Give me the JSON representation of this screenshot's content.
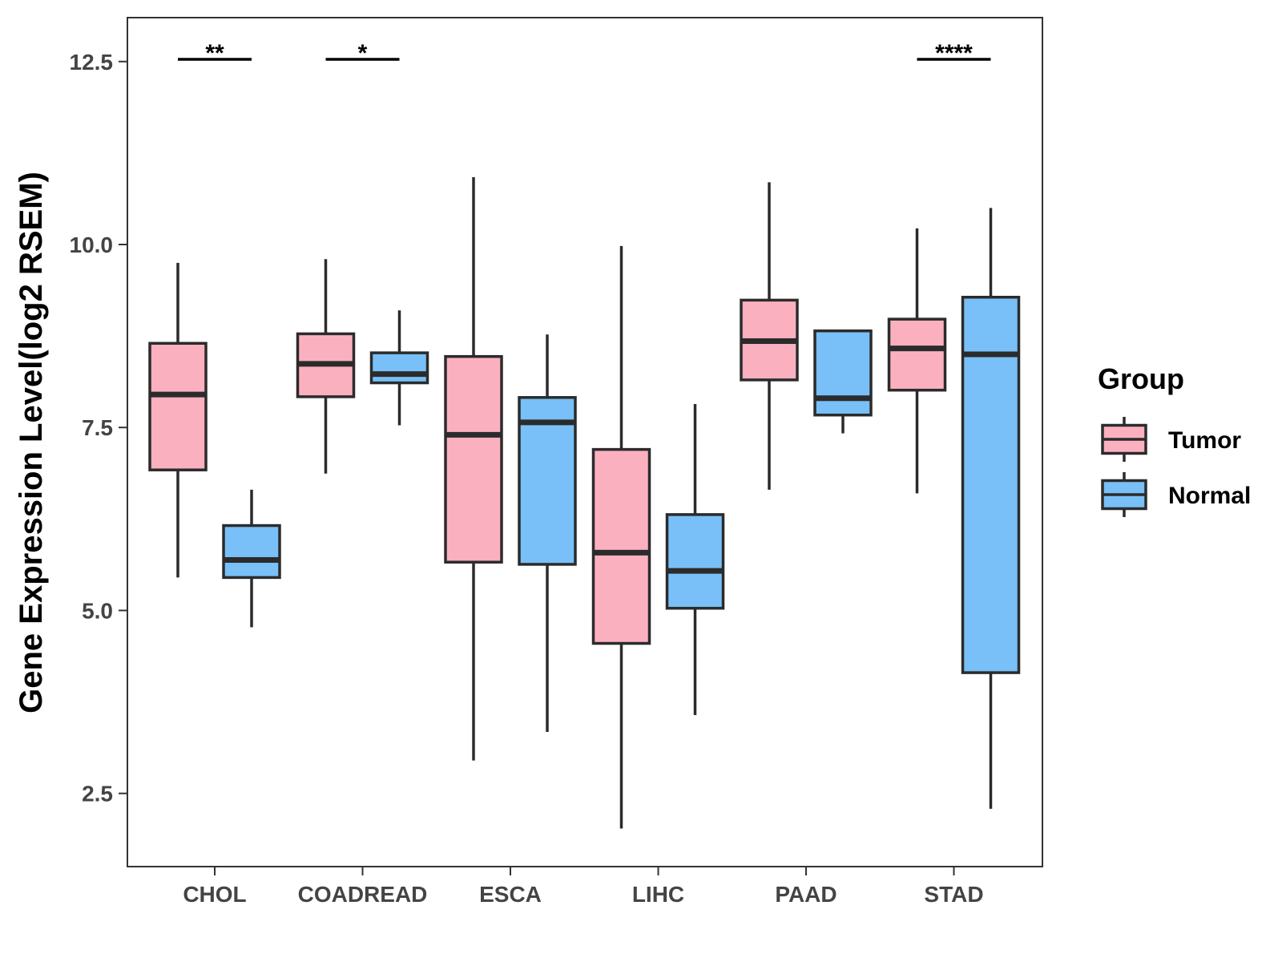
{
  "chart_data": {
    "type": "boxplot",
    "title": "",
    "xlabel": "",
    "ylabel": "Gene Expression Level(log2 RSEM)",
    "ylim": [
      1.5,
      13.1
    ],
    "yticks": [
      2.5,
      5.0,
      7.5,
      10.0,
      12.5
    ],
    "ytick_labels": [
      "2.5",
      "5.0",
      "7.5",
      "10.0",
      "12.5"
    ],
    "categories": [
      "CHOL",
      "COADREAD",
      "ESCA",
      "LIHC",
      "PAAD",
      "STAD"
    ],
    "legend": {
      "title": "Group",
      "position": "right",
      "entries": [
        {
          "name": "Tumor",
          "color": "#FBB0C0"
        },
        {
          "name": "Normal",
          "color": "#78C0F7"
        }
      ]
    },
    "series": [
      {
        "name": "Tumor",
        "color": "#FBB0C0",
        "boxes": [
          {
            "min": 5.45,
            "q1": 6.92,
            "median": 7.95,
            "q3": 8.65,
            "max": 9.75
          },
          {
            "min": 6.87,
            "q1": 7.92,
            "median": 8.37,
            "q3": 8.78,
            "max": 9.8
          },
          {
            "min": 2.95,
            "q1": 5.66,
            "median": 7.4,
            "q3": 8.47,
            "max": 10.92
          },
          {
            "min": 2.02,
            "q1": 4.55,
            "median": 5.79,
            "q3": 7.2,
            "max": 9.98
          },
          {
            "min": 6.65,
            "q1": 8.15,
            "median": 8.68,
            "q3": 9.24,
            "max": 10.85
          },
          {
            "min": 6.6,
            "q1": 8.01,
            "median": 8.58,
            "q3": 8.98,
            "max": 10.22
          }
        ]
      },
      {
        "name": "Normal",
        "color": "#78C0F7",
        "boxes": [
          {
            "min": 4.77,
            "q1": 5.45,
            "median": 5.69,
            "q3": 6.16,
            "max": 6.65
          },
          {
            "min": 7.53,
            "q1": 8.11,
            "median": 8.23,
            "q3": 8.52,
            "max": 9.1
          },
          {
            "min": 3.34,
            "q1": 5.63,
            "median": 7.57,
            "q3": 7.91,
            "max": 8.77
          },
          {
            "min": 3.57,
            "q1": 5.03,
            "median": 5.54,
            "q3": 6.31,
            "max": 7.82
          },
          {
            "min": 7.42,
            "q1": 7.67,
            "median": 7.9,
            "q3": 8.82,
            "max": 8.82
          },
          {
            "min": 2.29,
            "q1": 4.15,
            "median": 8.5,
            "q3": 9.28,
            "max": 10.5
          }
        ]
      }
    ],
    "annotations": [
      {
        "category": "CHOL",
        "label": "**",
        "y": 12.53
      },
      {
        "category": "COADREAD",
        "label": "*",
        "y": 12.53
      },
      {
        "category": "STAD",
        "label": "****",
        "y": 12.53
      }
    ]
  }
}
